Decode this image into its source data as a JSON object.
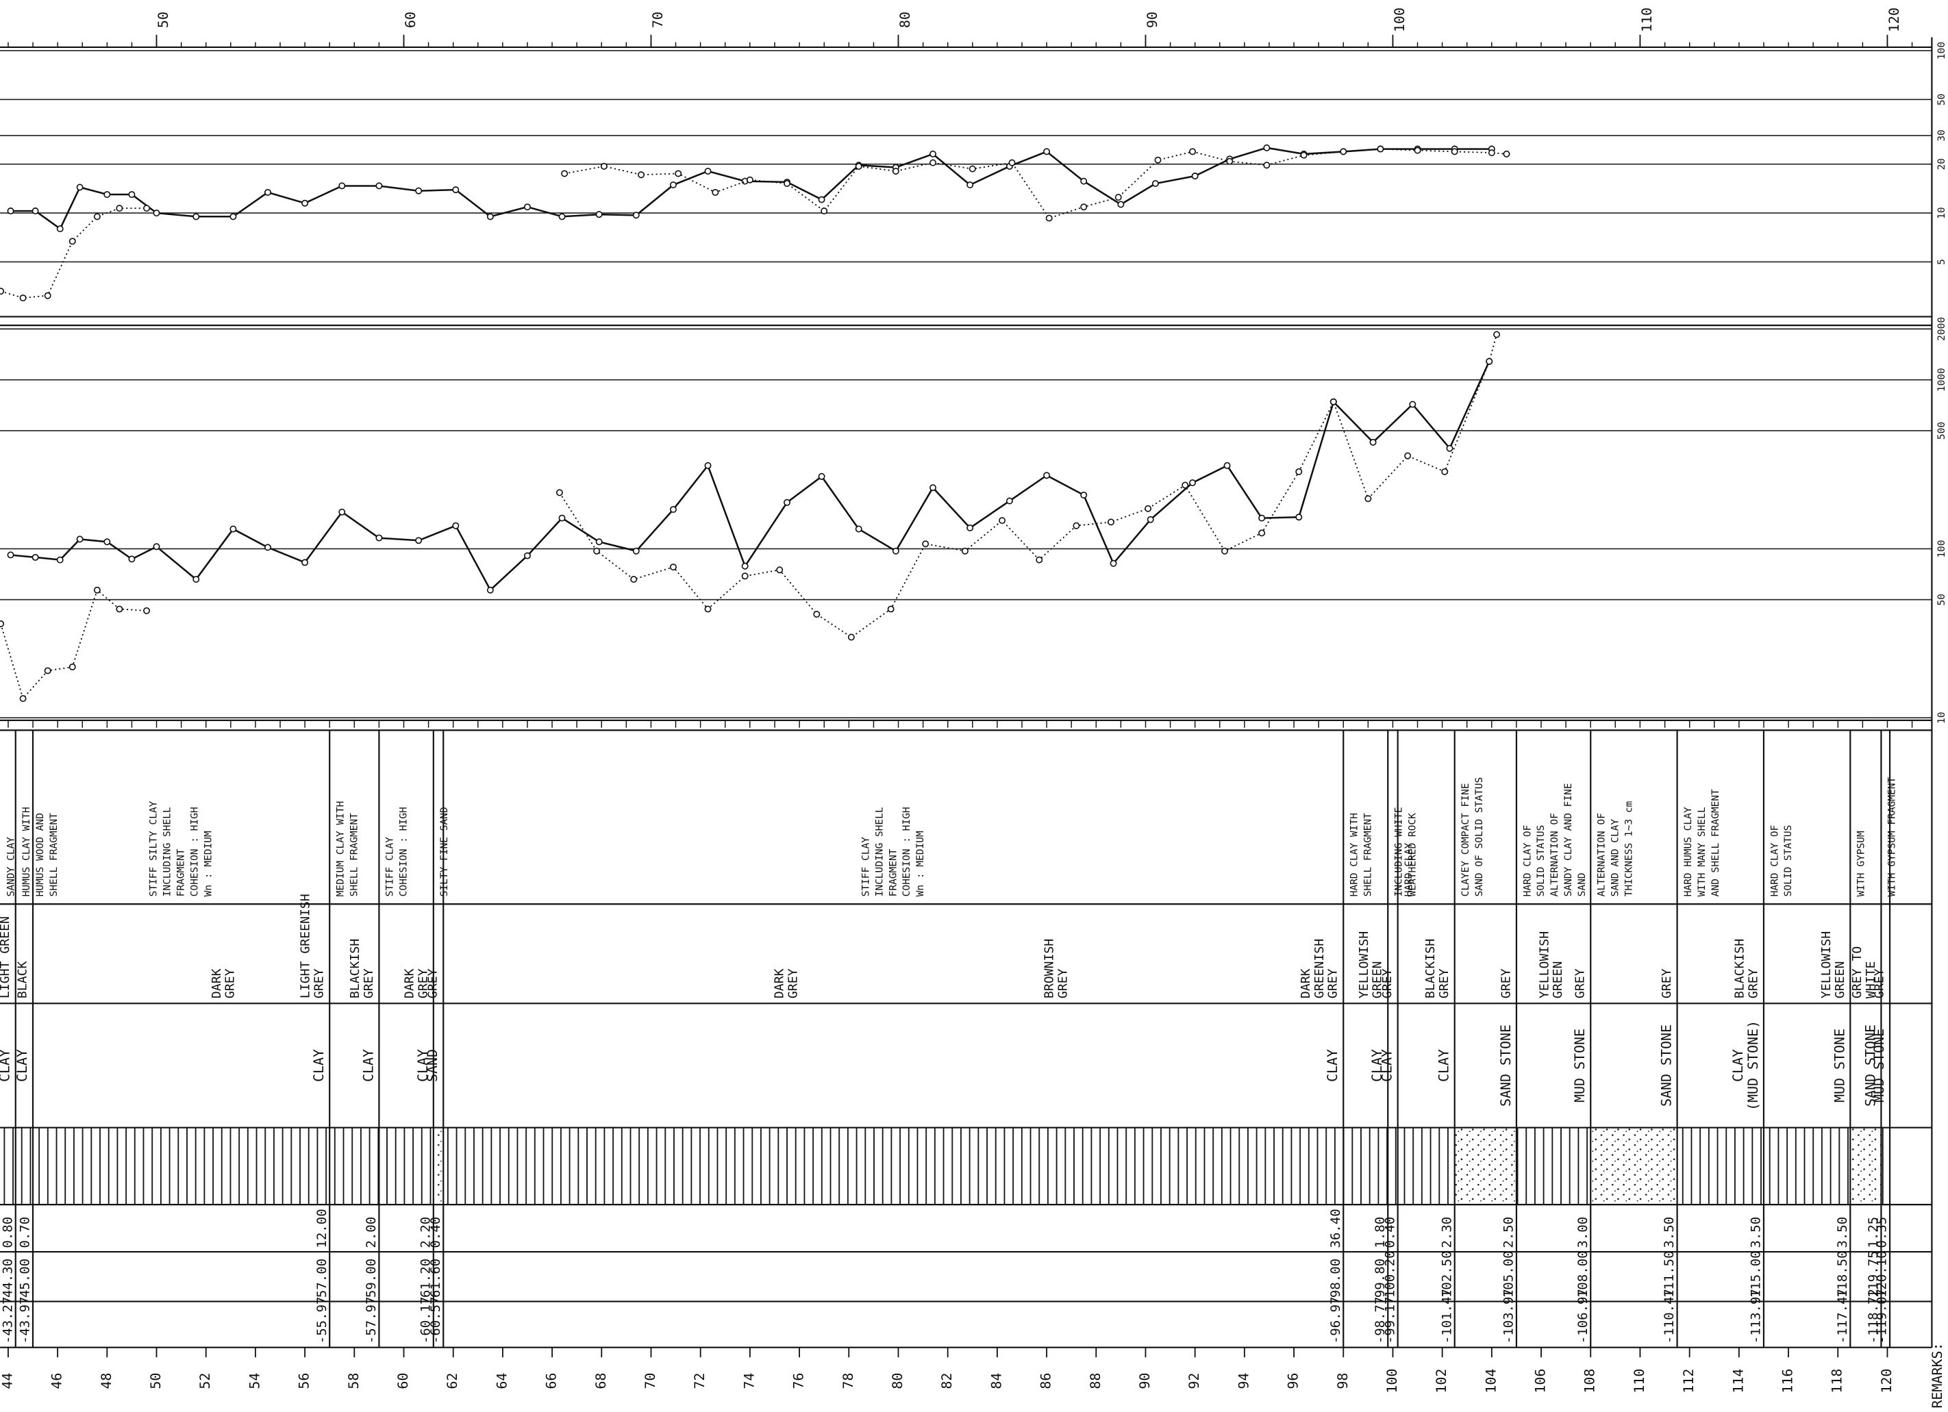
{
  "depth_range": [
    43.67,
    121.8
  ],
  "depth_axis_top": {
    "ticks": [
      50,
      60,
      70,
      80,
      90,
      100,
      110,
      120
    ]
  },
  "plots": [
    {
      "scale": "log",
      "ylim": [
        2.3,
        105
      ],
      "yticks": [
        5,
        10,
        20,
        30,
        50,
        100
      ],
      "series": [
        {
          "style": "solid",
          "x": [
            44.1,
            45.1,
            46.1,
            46.9,
            48.0,
            49.0,
            50.0,
            51.6,
            53.1,
            54.5,
            56.0,
            57.5,
            59.0,
            60.6,
            62.1,
            63.5,
            65.0,
            66.4,
            67.9,
            69.4,
            70.9,
            72.3,
            73.8,
            75.5,
            76.9,
            78.4,
            79.9,
            81.4,
            82.9,
            84.5,
            86.0,
            87.5,
            89.0,
            90.4,
            92.0,
            93.4,
            94.9,
            96.4,
            98.0,
            99.5,
            101.0,
            102.5,
            104.0
          ],
          "values": [
            10.3,
            10.3,
            8.0,
            14.4,
            13.0,
            13.0,
            10,
            9.5,
            9.5,
            13.4,
            11.5,
            14.7,
            14.7,
            13.7,
            13.9,
            9.5,
            10.9,
            9.5,
            9.8,
            9.7,
            14.9,
            18.1,
            15.7,
            15.5,
            12.1,
            19.7,
            19.1,
            23.1,
            14.9,
            19.4,
            23.9,
            15.7,
            11.3,
            15.2,
            16.9,
            21.5,
            25.2,
            23.1,
            23.9,
            24.8,
            24.8,
            24.8,
            24.8
          ]
        },
        {
          "style": "dotted",
          "x": [
            43.7,
            44.6,
            45.6,
            46.6,
            47.6,
            48.5,
            49.6
          ],
          "values": [
            3.3,
            3.0,
            3.1,
            6.7,
            9.5,
            10.7,
            10.7
          ]
        },
        {
          "style": "dotted",
          "x": [
            66.5,
            68.1,
            69.6,
            71.1,
            72.6,
            74.0,
            75.5,
            77.0,
            78.4,
            79.9,
            81.4,
            83.0,
            84.6,
            86.1,
            87.5,
            88.9,
            90.5,
            91.9,
            93.4,
            94.9,
            96.4,
            98.0,
            99.5,
            101.0,
            102.5,
            104.0,
            104.6
          ],
          "values": [
            17.5,
            19.4,
            17.2,
            17.5,
            13.4,
            16.0,
            15.2,
            10.3,
            19.4,
            18.1,
            20.4,
            18.7,
            20.4,
            9.3,
            10.9,
            12.5,
            21.2,
            23.9,
            20.8,
            19.7,
            22.7,
            23.9,
            24.8,
            24.3,
            23.9,
            23.5,
            23.1
          ]
        }
      ]
    },
    {
      "scale": "log",
      "ylim": [
        10,
        2100
      ],
      "yticks": [
        10,
        50,
        100,
        500,
        1000,
        2000
      ],
      "series": [
        {
          "style": "solid",
          "x": [
            44.1,
            45.1,
            46.1,
            46.9,
            48.0,
            49.0,
            50.0,
            51.6,
            53.1,
            54.5,
            56.0,
            57.5,
            59.0,
            60.6,
            62.1,
            63.5,
            65.0,
            66.4,
            67.9,
            69.4,
            70.9,
            72.3,
            73.8,
            75.5,
            76.9,
            78.4,
            79.9,
            81.4,
            82.9,
            84.5,
            86.0,
            87.5,
            88.7,
            90.2,
            91.9,
            93.3,
            94.7,
            96.2,
            97.6,
            99.2,
            100.8,
            102.3,
            103.9
          ],
          "values": [
            92,
            89,
            86,
            114,
            110,
            87,
            103,
            66,
            131,
            102,
            83,
            165,
            116,
            112,
            137,
            57,
            91,
            152,
            110,
            97,
            171,
            311,
            79,
            188,
            268,
            131,
            97,
            230,
            133,
            192,
            272,
            208,
            82,
            149,
            246,
            311,
            152,
            154,
            741,
            427,
            716,
            393,
            1285
          ]
        },
        {
          "style": "dotted",
          "x": [
            43.7,
            44.6,
            45.6,
            46.6,
            47.6,
            48.5,
            49.6
          ],
          "values": [
            36,
            13,
            19,
            20,
            57,
            44,
            43
          ]
        },
        {
          "style": "dotted",
          "x": [
            66.3,
            67.8,
            69.3,
            70.9,
            72.3,
            73.8,
            75.2,
            76.7,
            78.1,
            79.7,
            81.1,
            82.7,
            84.2,
            85.7,
            87.2,
            88.6,
            90.1,
            91.6,
            93.2,
            94.7,
            96.2,
            97.6,
            99.0,
            100.6,
            102.1,
            103.9,
            104.2
          ],
          "values": [
            215,
            97,
            66,
            78,
            44,
            69,
            75,
            41,
            30,
            44,
            107,
            97,
            147,
            86,
            137,
            144,
            173,
            238,
            97,
            124,
            286,
            741,
            198,
            355,
            286,
            1285,
            1854
          ]
        }
      ]
    }
  ],
  "layers": [
    {
      "elevation": "-43.27",
      "depth": "44.30",
      "thickness": "0.80",
      "soil": [
        "CLAY"
      ],
      "color": [
        [
          "LIGHT GREEN"
        ]
      ],
      "description": [
        "SANDY CLAY"
      ],
      "pattern": "hatch"
    },
    {
      "elevation": "-43.97",
      "depth": "45.00",
      "thickness": "0.70",
      "soil": [
        "CLAY"
      ],
      "color": [
        [
          "BLACK"
        ]
      ],
      "description": [
        "HUMUS CLAY WITH",
        "HUMUS WOOD AND",
        "SHELL FRAGMENT"
      ],
      "pattern": "hatch"
    },
    {
      "elevation": "-55.97",
      "depth": "57.00",
      "thickness": "12.00",
      "soil": [
        "CLAY"
      ],
      "color": [
        [
          "DARK",
          "GREY"
        ],
        [
          "LIGHT GREENISH",
          "GREY"
        ]
      ],
      "description": [
        "STIFF SILTY CLAY",
        "INCLUDING SHELL",
        "FRAGMENT",
        "COHESION : HIGH",
        "Wn : MEDIUM"
      ],
      "pattern": "hatch"
    },
    {
      "elevation": "-57.97",
      "depth": "59.00",
      "thickness": "2.00",
      "soil": [
        "CLAY"
      ],
      "color": [
        [
          "BLACKISH",
          "GREY"
        ]
      ],
      "description": [
        "MEDIUM CLAY WITH",
        "SHELL FRAGMENT"
      ],
      "pattern": "hatch"
    },
    {
      "elevation": "-60.17",
      "depth": "61.20",
      "thickness": "2.20",
      "soil": [
        "CLAY"
      ],
      "color": [
        [
          "DARK",
          "GREY"
        ]
      ],
      "description": [
        "STIFF CLAY",
        "COHESION : HIGH"
      ],
      "pattern": "hatch"
    },
    {
      "elevation": "-60.57",
      "depth": "61.60",
      "thickness": "0.40",
      "soil": [
        "SAND"
      ],
      "color": [
        [
          "GREY"
        ]
      ],
      "description": [
        "SILTY FINE SAND"
      ],
      "pattern": "dots"
    },
    {
      "elevation": "-96.97",
      "depth": "98.00",
      "thickness": "36.40",
      "soil": [
        "CLAY"
      ],
      "color": [
        [
          "DARK",
          "GREY"
        ],
        [
          "BROWNISH",
          "GREY"
        ],
        [
          "DARK",
          "GREENISH",
          "GREY"
        ]
      ],
      "description": [
        "STIFF CLAY",
        "INCLUDING SHELL",
        "FRAGMENT",
        "COHESION : HIGH",
        "Wn : MEDIUM"
      ],
      "pattern": "hatch"
    },
    {
      "elevation": "-98.77",
      "depth": "99.80",
      "thickness": "1.80",
      "soil": [
        "CLAY"
      ],
      "color": [
        [
          "YELLOWISH",
          "GREEN"
        ]
      ],
      "description": [
        "HARD CLAY WITH",
        "SHELL FRAGMENT"
      ],
      "pattern": "hatch"
    },
    {
      "elevation": "-99.17",
      "depth": "100.20",
      "thickness": "0.40",
      "soil": [
        "CLAY"
      ],
      "color": [
        [
          "GREY"
        ]
      ],
      "description": [
        "INCLUDING WHITE",
        "WEATHERED ROCK"
      ],
      "pattern": "hatch"
    },
    {
      "elevation": "-101.47",
      "depth": "102.50",
      "thickness": "2.30",
      "soil": [
        "CLAY"
      ],
      "color": [
        [
          "BLACKISH",
          "GREY"
        ]
      ],
      "description": [
        "HARD CLAY"
      ],
      "pattern": "hatch"
    },
    {
      "elevation": "-103.97",
      "depth": "105.00",
      "thickness": "2.50",
      "soil": [
        "SAND STONE"
      ],
      "color": [
        [
          "GREY"
        ]
      ],
      "description": [
        "CLAYEY COMPACT FINE",
        "SAND OF SOLID STATUS"
      ],
      "pattern": "dots"
    },
    {
      "elevation": "-106.97",
      "depth": "108.00",
      "thickness": "3.00",
      "soil": [
        "MUD STONE"
      ],
      "color": [
        [
          "YELLOWISH",
          "GREEN"
        ],
        [
          "GREY"
        ]
      ],
      "description": [
        "HARD CLAY OF",
        "SOLID STATUS",
        "ALTERNATION OF",
        "SANDY CLAY AND FINE",
        "SAND"
      ],
      "pattern": "hatch"
    },
    {
      "elevation": "-110.47",
      "depth": "111.50",
      "thickness": "3.50",
      "soil": [
        "SAND STONE"
      ],
      "color": [
        [
          "GREY"
        ]
      ],
      "description": [
        "ALTERNATION OF",
        "SAND AND CLAY",
        "THICKNESS 1~3 cm"
      ],
      "pattern": "dots"
    },
    {
      "elevation": "-113.97",
      "depth": "115.00",
      "thickness": "3.50",
      "soil": [
        "CLAY",
        "(MUD STONE)"
      ],
      "color": [
        [
          "BLACKISH",
          "GREY"
        ]
      ],
      "description": [
        "HARD HUMUS CLAY",
        "WITH MANY SHELL",
        "AND SHELL FRAGMENT"
      ],
      "pattern": "hatch"
    },
    {
      "elevation": "-117.47",
      "depth": "118.50",
      "thickness": "3.50",
      "soil": [
        "MUD STONE"
      ],
      "color": [
        [
          "YELLOWISH",
          "GREEN"
        ]
      ],
      "description": [
        "HARD CLAY OF",
        "SOLID STATUS"
      ],
      "pattern": "hatch"
    },
    {
      "elevation": "-118.72",
      "depth": "119.75",
      "thickness": "1.25",
      "soil": [
        "SAND STONE"
      ],
      "color": [
        [
          "GREY TO",
          "WHITE"
        ]
      ],
      "description": [
        "WITH GYPSUM"
      ],
      "pattern": "dots"
    },
    {
      "elevation": "-119.07",
      "depth": "120.10",
      "thickness": "0.35",
      "soil": [
        "MUD STONE"
      ],
      "color": [
        [
          "GREY"
        ]
      ],
      "description": [
        "WITH GYPSUM FRAGMENT"
      ],
      "pattern": "hatch"
    }
  ],
  "depth_labels": [
    44,
    46,
    48,
    50,
    52,
    54,
    56,
    58,
    60,
    62,
    64,
    66,
    68,
    70,
    72,
    74,
    76,
    78,
    80,
    82,
    84,
    86,
    88,
    90,
    92,
    94,
    96,
    98,
    100,
    102,
    104,
    106,
    108,
    110,
    112,
    114,
    116,
    118,
    120
  ],
  "remarks": "REMARKS:"
}
